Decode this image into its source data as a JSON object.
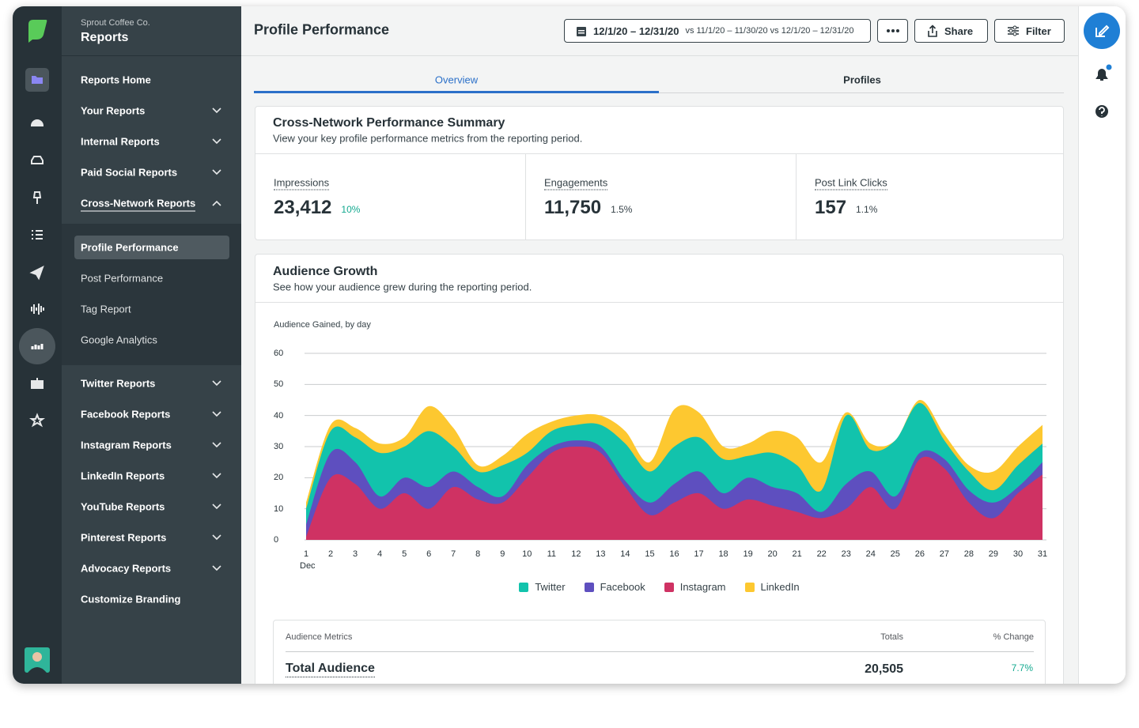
{
  "app": {
    "company": "Sprout Coffee Co.",
    "section": "Reports"
  },
  "nav": {
    "primary": [
      {
        "label": "Reports Home"
      },
      {
        "label": "Your Reports",
        "chevron": "down"
      },
      {
        "label": "Internal Reports",
        "chevron": "down"
      },
      {
        "label": "Paid Social Reports",
        "chevron": "down"
      },
      {
        "label": "Cross-Network Reports",
        "chevron": "up"
      }
    ],
    "sub": [
      {
        "label": "Profile Performance",
        "selected": true
      },
      {
        "label": "Post Performance"
      },
      {
        "label": "Tag Report"
      },
      {
        "label": "Google Analytics"
      }
    ],
    "secondary": [
      {
        "label": "Twitter Reports",
        "chevron": "down"
      },
      {
        "label": "Facebook Reports",
        "chevron": "down"
      },
      {
        "label": "Instagram Reports",
        "chevron": "down"
      },
      {
        "label": "LinkedIn Reports",
        "chevron": "down"
      },
      {
        "label": "YouTube Reports",
        "chevron": "down"
      },
      {
        "label": "Pinterest Reports",
        "chevron": "down"
      },
      {
        "label": "Advocacy Reports",
        "chevron": "down"
      },
      {
        "label": "Customize Branding"
      }
    ]
  },
  "header": {
    "title": "Profile Performance",
    "date_range": "12/1/20 – 12/31/20",
    "comparison": "vs 11/1/20 – 11/30/20 vs 12/1/20 – 12/31/20",
    "buttons": [
      "Share",
      "Filter"
    ]
  },
  "tabs": {
    "items": [
      "Overview",
      "Profiles"
    ],
    "selected": 0
  },
  "summary": {
    "title": "Cross-Network Performance Summary",
    "subtitle": "View your key profile performance metrics from the reporting period.",
    "metrics": [
      {
        "label": "Impressions",
        "value": "23,412",
        "change": "10%",
        "direction": "up"
      },
      {
        "label": "Engagements",
        "value": "11,750",
        "change": "1.5%",
        "direction": "down"
      },
      {
        "label": "Post Link Clicks",
        "value": "157",
        "change": "1.1%",
        "direction": "down"
      }
    ]
  },
  "audience_growth": {
    "title": "Audience Growth",
    "subtitle": "See how your audience grew during the reporting period."
  },
  "chart_data": {
    "type": "area",
    "stacked": true,
    "title": "Audience Gained, by day",
    "categories": [
      "1",
      "2",
      "3",
      "4",
      "5",
      "6",
      "7",
      "8",
      "9",
      "10",
      "11",
      "12",
      "13",
      "14",
      "15",
      "16",
      "17",
      "18",
      "19",
      "20",
      "21",
      "22",
      "23",
      "24",
      "25",
      "26",
      "27",
      "28",
      "29",
      "30",
      "31"
    ],
    "x_period_label": "Dec",
    "ylim": [
      0,
      60
    ],
    "yticks": [
      0,
      10,
      20,
      30,
      40,
      50,
      60
    ],
    "grid": true,
    "legend": "bottom",
    "series": [
      {
        "name": "Twitter",
        "color": "#12c3ac",
        "values": [
          5,
          7,
          8,
          14,
          10,
          18,
          8,
          5,
          10,
          4,
          5,
          5,
          7,
          12,
          10,
          12,
          11,
          11,
          7,
          11,
          9,
          7,
          22,
          7,
          18,
          16,
          6,
          6,
          4,
          7,
          6
        ]
      },
      {
        "name": "Facebook",
        "color": "#5e4fbf",
        "values": [
          4,
          8,
          7,
          4,
          5,
          7,
          5,
          4,
          2,
          4,
          2,
          2,
          2,
          2,
          4,
          6,
          7,
          5,
          7,
          6,
          6,
          2,
          8,
          5,
          4,
          2,
          3,
          4,
          5,
          2,
          4
        ]
      },
      {
        "name": "Instagram",
        "color": "#cf3263",
        "values": [
          1,
          20,
          18,
          10,
          15,
          10,
          17,
          13,
          12,
          20,
          28,
          30,
          28,
          17,
          8,
          12,
          15,
          10,
          13,
          11,
          9,
          7,
          10,
          17,
          10,
          26,
          23,
          12,
          7,
          15,
          21
        ]
      },
      {
        "name": "LinkedIn",
        "color": "#fdc830",
        "values": [
          2,
          2,
          3,
          3,
          3,
          8,
          6,
          2,
          3,
          6,
          3,
          3,
          3,
          4,
          3,
          12,
          8,
          4,
          4,
          7,
          9,
          9,
          1,
          2,
          0,
          1,
          2,
          2,
          6,
          6,
          6
        ]
      }
    ],
    "stack_order": [
      2,
      1,
      0,
      3
    ]
  },
  "metrics_table": {
    "headers": [
      "Audience Metrics",
      "Totals",
      "% Change"
    ],
    "rows": [
      {
        "cells": [
          "Total Audience",
          "20,505",
          "7.7%"
        ],
        "direction": "up"
      }
    ]
  }
}
